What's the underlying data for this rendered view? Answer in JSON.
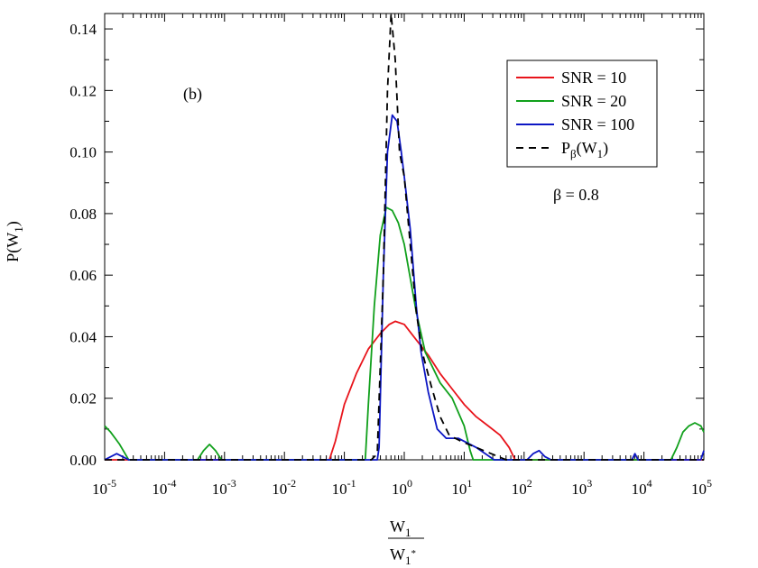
{
  "chart_data": {
    "type": "line",
    "panel_label": "(b)",
    "annotation": "β = 0.8",
    "xscale": "log",
    "xlim_exponent": [
      -5,
      5
    ],
    "ylim": [
      0,
      0.145
    ],
    "x_tick_exponents": [
      "-5",
      "-4",
      "-3",
      "-2",
      "-1",
      "0",
      "1",
      "2",
      "3",
      "4",
      "5"
    ],
    "x_tick_base": "10",
    "y_tick_labels": [
      "0.00",
      "0.02",
      "0.04",
      "0.06",
      "0.08",
      "0.10",
      "0.12",
      "0.14"
    ],
    "y_ticks": [
      0,
      0.02,
      0.04,
      0.06,
      0.08,
      0.1,
      0.12,
      0.14
    ],
    "ylabel": {
      "main": "P(W",
      "sub": "1",
      "close": ")"
    },
    "xlabel": {
      "num_main": "W",
      "num_sub": "1",
      "den_main": "W",
      "den_sub": "1",
      "den_sup": "*"
    },
    "legend_position": "top-right",
    "series": [
      {
        "name": "SNR = 10",
        "color": "#e8141b",
        "dash": false,
        "points": [
          [
            -5,
            0
          ],
          [
            -1.25,
            0
          ],
          [
            -1.15,
            0.006
          ],
          [
            -1.0,
            0.018
          ],
          [
            -0.8,
            0.028
          ],
          [
            -0.6,
            0.036
          ],
          [
            -0.4,
            0.041
          ],
          [
            -0.25,
            0.044
          ],
          [
            -0.15,
            0.045
          ],
          [
            0,
            0.044
          ],
          [
            0.2,
            0.039
          ],
          [
            0.4,
            0.034
          ],
          [
            0.6,
            0.028
          ],
          [
            0.8,
            0.023
          ],
          [
            1.0,
            0.018
          ],
          [
            1.2,
            0.014
          ],
          [
            1.4,
            0.011
          ],
          [
            1.6,
            0.008
          ],
          [
            1.75,
            0.004
          ],
          [
            1.85,
            0
          ],
          [
            5,
            0
          ]
        ]
      },
      {
        "name": "SNR = 20",
        "color": "#11a01c",
        "dash": false,
        "points": [
          [
            -5,
            0.011
          ],
          [
            -4.9,
            0.009
          ],
          [
            -4.75,
            0.005
          ],
          [
            -4.6,
            0
          ],
          [
            -3.45,
            0
          ],
          [
            -3.35,
            0.003
          ],
          [
            -3.25,
            0.005
          ],
          [
            -3.15,
            0.003
          ],
          [
            -3.05,
            0
          ],
          [
            -0.65,
            0
          ],
          [
            -0.6,
            0.018
          ],
          [
            -0.5,
            0.05
          ],
          [
            -0.4,
            0.073
          ],
          [
            -0.3,
            0.082
          ],
          [
            -0.2,
            0.081
          ],
          [
            -0.1,
            0.077
          ],
          [
            0,
            0.07
          ],
          [
            0.2,
            0.048
          ],
          [
            0.35,
            0.035
          ],
          [
            0.6,
            0.025
          ],
          [
            0.8,
            0.02
          ],
          [
            1.0,
            0.011
          ],
          [
            1.1,
            0.003
          ],
          [
            1.15,
            0
          ],
          [
            4.45,
            0
          ],
          [
            4.55,
            0.004
          ],
          [
            4.65,
            0.009
          ],
          [
            4.75,
            0.011
          ],
          [
            4.85,
            0.012
          ],
          [
            4.95,
            0.011
          ],
          [
            5,
            0.009
          ]
        ]
      },
      {
        "name": "SNR = 100",
        "color": "#0c16c4",
        "dash": false,
        "points": [
          [
            -5,
            0
          ],
          [
            -4.8,
            0.002
          ],
          [
            -4.6,
            0
          ],
          [
            -0.45,
            0
          ],
          [
            -0.42,
            0.004
          ],
          [
            -0.35,
            0.06
          ],
          [
            -0.28,
            0.1
          ],
          [
            -0.2,
            0.112
          ],
          [
            -0.12,
            0.11
          ],
          [
            -0.05,
            0.1
          ],
          [
            0,
            0.092
          ],
          [
            0.1,
            0.075
          ],
          [
            0.2,
            0.05
          ],
          [
            0.28,
            0.035
          ],
          [
            0.4,
            0.022
          ],
          [
            0.55,
            0.01
          ],
          [
            0.7,
            0.007
          ],
          [
            0.9,
            0.007
          ],
          [
            1.2,
            0.004
          ],
          [
            1.5,
            0
          ],
          [
            2.05,
            0
          ],
          [
            2.15,
            0.002
          ],
          [
            2.25,
            0.003
          ],
          [
            2.35,
            0.001
          ],
          [
            2.45,
            0
          ],
          [
            3.8,
            0
          ],
          [
            3.85,
            0.002
          ],
          [
            3.9,
            0
          ],
          [
            4.95,
            0
          ],
          [
            5,
            0.003
          ]
        ]
      },
      {
        "name": "P_β(W_1)",
        "color": "#000000",
        "dash": true,
        "points": [
          [
            -5,
            0
          ],
          [
            -0.55,
            0
          ],
          [
            -0.45,
            0.002
          ],
          [
            -0.35,
            0.06
          ],
          [
            -0.28,
            0.12
          ],
          [
            -0.22,
            0.145
          ],
          [
            -0.15,
            0.13
          ],
          [
            -0.08,
            0.1
          ],
          [
            0,
            0.092
          ],
          [
            0.1,
            0.07
          ],
          [
            0.2,
            0.048
          ],
          [
            0.3,
            0.035
          ],
          [
            0.45,
            0.024
          ],
          [
            0.6,
            0.014
          ],
          [
            0.75,
            0.008
          ],
          [
            0.95,
            0.006
          ],
          [
            1.2,
            0.004
          ],
          [
            1.45,
            0.002
          ],
          [
            1.7,
            0
          ],
          [
            5,
            0
          ]
        ]
      }
    ]
  }
}
